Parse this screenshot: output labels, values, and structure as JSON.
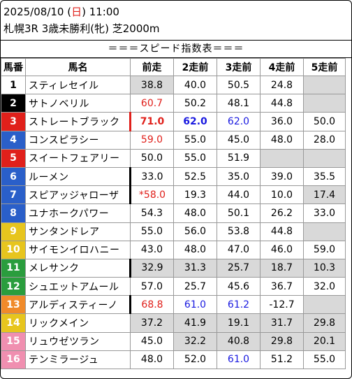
{
  "header": {
    "date_prefix": "2025/08/10 (",
    "weekday": "日",
    "date_suffix": ") 11:00",
    "race": "札幌3R 3歳未勝利(牝) 芝2000m"
  },
  "banner": "＝＝＝スピード指数表＝＝＝",
  "columns": [
    "馬番",
    "馬名",
    "前走",
    "2走前",
    "3走前",
    "4走前",
    "5走前"
  ],
  "colors": {
    "gate_1": "#ffffff",
    "gate_2": "#000000",
    "gate_3": "#e0201b",
    "gate_4": "#2a5fc9",
    "gate_5": "#e7c51e",
    "gate_6": "#2a9d3d",
    "gate_7": "#f08a2a",
    "gate_8": "#f08fb0",
    "highlight_red": "#e0201b",
    "highlight_blue": "#1a1ae0",
    "shaded": "#d9d9d9"
  },
  "rows": [
    {
      "no": "1",
      "name": "スティレセイル",
      "v": [
        "38.8",
        "40.0",
        "50.5",
        "24.8",
        ""
      ]
    },
    {
      "no": "2",
      "name": "サトノベリル",
      "v": [
        "60.7",
        "50.2",
        "48.1",
        "44.8",
        ""
      ]
    },
    {
      "no": "3",
      "name": "ストレートブラック",
      "v": [
        "71.0",
        "62.0",
        "62.0",
        "36.0",
        "50.0"
      ]
    },
    {
      "no": "4",
      "name": "コンスピラシー",
      "v": [
        "59.0",
        "55.0",
        "45.0",
        "48.0",
        "28.0"
      ]
    },
    {
      "no": "5",
      "name": "スイートフェアリー",
      "v": [
        "50.0",
        "55.0",
        "51.9",
        "",
        ""
      ]
    },
    {
      "no": "6",
      "name": "ルーメン",
      "v": [
        "33.0",
        "52.5",
        "35.0",
        "39.0",
        "35.5"
      ]
    },
    {
      "no": "7",
      "name": "スピアッジャローザ",
      "v": [
        "*58.0",
        "19.3",
        "44.0",
        "10.0",
        "17.4"
      ]
    },
    {
      "no": "8",
      "name": "ユナホークパワー",
      "v": [
        "54.3",
        "48.0",
        "50.1",
        "26.2",
        "33.0"
      ]
    },
    {
      "no": "9",
      "name": "サンタンドレア",
      "v": [
        "55.0",
        "56.0",
        "53.8",
        "44.8",
        ""
      ]
    },
    {
      "no": "10",
      "name": "サイモンイロハニー",
      "v": [
        "43.0",
        "48.0",
        "47.0",
        "46.0",
        "59.0"
      ]
    },
    {
      "no": "11",
      "name": "メレサンク",
      "v": [
        "32.9",
        "31.3",
        "25.7",
        "18.7",
        "10.3"
      ]
    },
    {
      "no": "12",
      "name": "シュエットアムール",
      "v": [
        "57.0",
        "25.7",
        "45.6",
        "36.7",
        "32.0"
      ]
    },
    {
      "no": "13",
      "name": "アルディスティーノ",
      "v": [
        "68.8",
        "61.0",
        "61.2",
        "-12.7",
        ""
      ]
    },
    {
      "no": "14",
      "name": "リックメイン",
      "v": [
        "37.2",
        "41.9",
        "19.1",
        "31.7",
        "29.8"
      ]
    },
    {
      "no": "15",
      "name": "リュウゼツラン",
      "v": [
        "45.0",
        "32.2",
        "40.8",
        "29.8",
        "20.1"
      ]
    },
    {
      "no": "16",
      "name": "テンミラージュ",
      "v": [
        "48.0",
        "52.0",
        "61.0",
        "51.2",
        "55.0"
      ]
    }
  ]
}
